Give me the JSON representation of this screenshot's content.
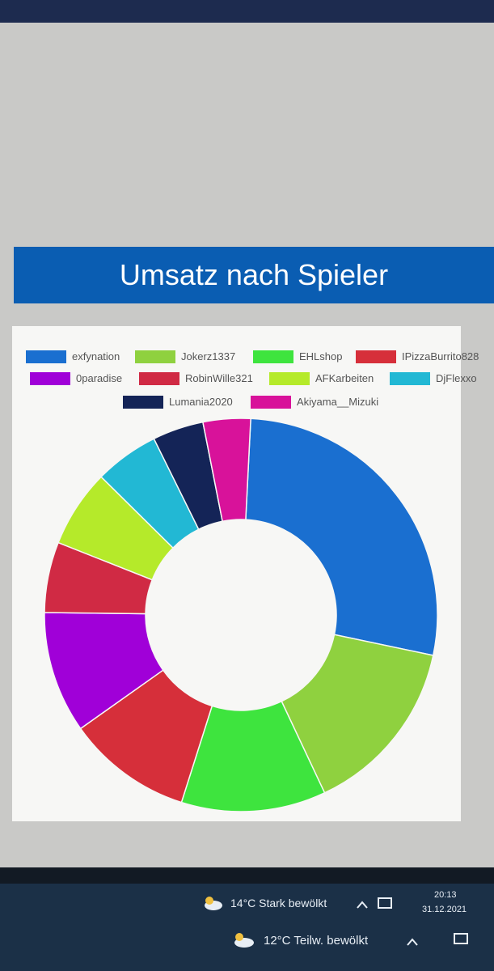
{
  "chart_data": {
    "type": "pie",
    "title": "Umsatz nach Spieler",
    "donut": true,
    "categories": [
      "exfynation",
      "Jokerz1337",
      "EHLshop",
      "IPizzaBurrito828",
      "0paradise",
      "RobinWille321",
      "AFKarbeiten",
      "DjFlexxo",
      "Lumania2020",
      "Akiyama__Mizuki"
    ],
    "values": [
      27.5,
      14.7,
      11.9,
      10.3,
      10,
      5.8,
      6.4,
      5.3,
      4.2,
      3.9
    ],
    "colors": [
      "#1a6fd0",
      "#8fd13f",
      "#3ee43e",
      "#d62f3a",
      "#a000d8",
      "#d02a44",
      "#b5ea2a",
      "#22b8d4",
      "#142457",
      "#d8129a"
    ],
    "legend": "top"
  },
  "taskbar": {
    "weather_1": "14°C  Stark bewölkt",
    "time": "20:13",
    "date": "31.12.2021",
    "weather_2": "12°C  Teilw. bewölkt"
  }
}
